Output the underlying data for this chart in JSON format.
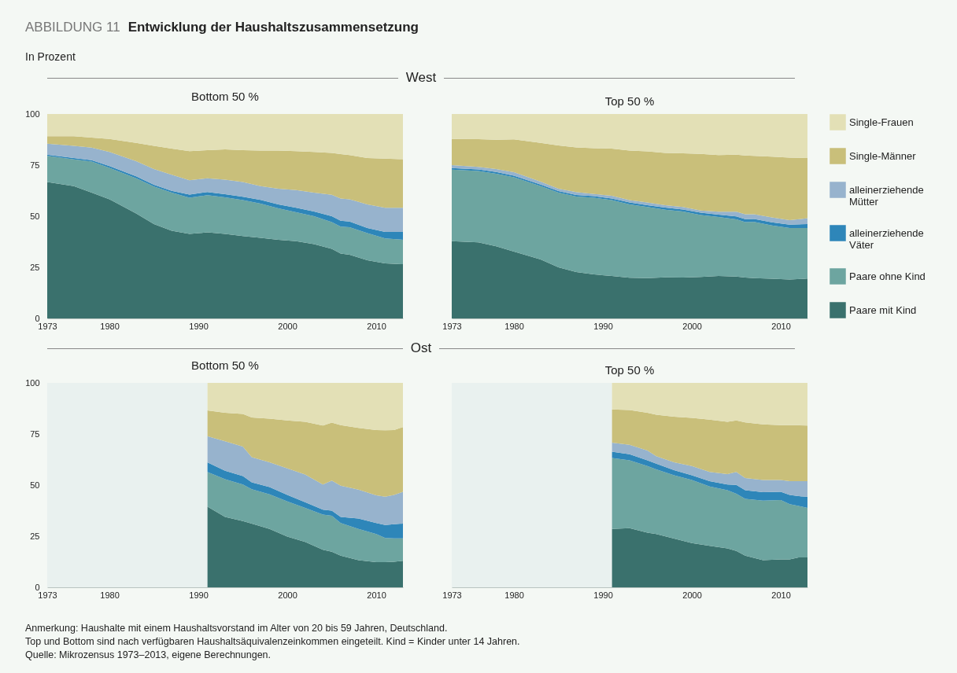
{
  "chart_data": [
    {
      "type": "area",
      "title": "Bottom 50 %",
      "stacked": true,
      "annotations": [
        "ABBILDUNG 11",
        "Entwicklung der Haushaltszusammensetzung",
        "In Prozent",
        "West"
      ],
      "x": [
        1973,
        1976,
        1978,
        1980,
        1983,
        1985,
        1987,
        1989,
        1991,
        1993,
        1995,
        1997,
        1999,
        2001,
        2003,
        2005,
        2006,
        2007,
        2009,
        2011,
        2013
      ],
      "xlim": [
        1973,
        2013
      ],
      "xticks": [
        1973,
        1980,
        1990,
        2000,
        2010
      ],
      "ylim": [
        0,
        100
      ],
      "yticks": [
        0,
        25,
        50,
        75,
        100
      ],
      "series": [
        {
          "color": "#3a716d",
          "values": [
            66.7,
            64.7,
            61.5,
            58.3,
            51.3,
            46.2,
            42.9,
            41.3,
            42.1,
            41.3,
            40.3,
            39.4,
            38.5,
            37.8,
            36.3,
            34.0,
            31.7,
            31.2,
            28.5,
            26.9,
            26.5
          ]
        },
        {
          "color": "#6da5a0",
          "values": [
            12.8,
            13.1,
            15.2,
            15.4,
            17.3,
            18.3,
            18.6,
            17.7,
            18.2,
            17.9,
            17.6,
            16.8,
            15.3,
            14.1,
            13.7,
            13.1,
            13.2,
            13.4,
            13.2,
            12.2,
            12.0
          ]
        },
        {
          "color": "#2e86b9",
          "values": [
            0.6,
            0.7,
            0.7,
            0.8,
            0.9,
            0.9,
            0.9,
            1.6,
            1.5,
            1.6,
            1.6,
            1.8,
            2.0,
            2.2,
            2.3,
            2.9,
            2.9,
            2.8,
            2.5,
            3.2,
            3.8
          ]
        },
        {
          "color": "#97b3cd",
          "values": [
            5.4,
            5.9,
            6.2,
            6.9,
            7.4,
            7.7,
            7.9,
            7.0,
            6.8,
            7.1,
            7.2,
            6.7,
            7.7,
            8.7,
            9.2,
            10.5,
            10.9,
            10.9,
            11.6,
            11.8,
            11.8
          ]
        },
        {
          "color": "#c9bf7a",
          "values": [
            3.6,
            4.7,
            4.9,
            6.4,
            9.0,
            11.3,
            12.8,
            14.2,
            13.7,
            14.8,
            15.6,
            17.4,
            18.6,
            19.0,
            19.9,
            20.5,
            21.7,
            21.6,
            22.7,
            24.1,
            23.8
          ]
        },
        {
          "color": "#e3e0b6",
          "values": [
            10.9,
            10.9,
            11.5,
            12.2,
            14.1,
            15.6,
            16.9,
            18.2,
            17.7,
            17.3,
            17.7,
            17.9,
            17.9,
            18.2,
            18.6,
            19.0,
            19.6,
            20.1,
            21.5,
            21.8,
            22.1
          ]
        }
      ]
    },
    {
      "type": "area",
      "title": "Top 50 %",
      "stacked": true,
      "tick_labels": "x",
      "legend": "right",
      "x": [
        1973,
        1976,
        1978,
        1980,
        1983,
        1985,
        1987,
        1989,
        1991,
        1993,
        1995,
        1997,
        1999,
        2001,
        2003,
        2005,
        2006,
        2007,
        2009,
        2011,
        2013
      ],
      "xlim": [
        1973,
        2013
      ],
      "xticks": [
        1973,
        1980,
        1990,
        2000,
        2010
      ],
      "ylim": [
        0,
        100
      ],
      "yticks": [
        0,
        25,
        50,
        75,
        100
      ],
      "series": [
        {
          "name": "Paare mit Kind",
          "color": "#3a716d",
          "values": [
            37.8,
            37.2,
            35.3,
            32.7,
            28.8,
            25.0,
            22.7,
            21.5,
            20.8,
            19.9,
            19.7,
            20.1,
            20.0,
            20.3,
            20.8,
            20.5,
            20.0,
            19.7,
            19.4,
            19.0,
            19.5
          ]
        },
        {
          "name": "Paare ohne Kind",
          "color": "#6da5a0",
          "values": [
            35.0,
            34.9,
            35.5,
            36.3,
            35.9,
            36.5,
            36.9,
            37.5,
            37.1,
            35.9,
            34.8,
            33.1,
            32.3,
            30.3,
            28.8,
            28.0,
            27.1,
            27.5,
            26.1,
            25.2,
            24.7
          ]
        },
        {
          "name": "alleinerziehende Väter",
          "color": "#2e86b9",
          "values": [
            0.8,
            0.8,
            0.8,
            0.8,
            0.8,
            0.8,
            0.8,
            0.8,
            0.8,
            0.9,
            0.9,
            1.0,
            1.0,
            1.1,
            1.2,
            1.4,
            1.5,
            1.5,
            1.5,
            1.7,
            2.0
          ]
        },
        {
          "name": "alleinerziehende Mütter",
          "color": "#97b3cd",
          "values": [
            1.4,
            1.2,
            1.5,
            1.7,
            1.4,
            1.2,
            1.4,
            1.1,
            1.3,
            1.2,
            1.3,
            1.2,
            1.2,
            1.1,
            1.4,
            2.3,
            2.4,
            2.3,
            2.4,
            2.2,
            2.8
          ]
        },
        {
          "name": "Single-Männer",
          "color": "#c9bf7a",
          "values": [
            12.8,
            13.6,
            14.3,
            16.1,
            19.0,
            21.1,
            21.9,
            22.4,
            23.1,
            24.2,
            25.0,
            25.6,
            26.3,
            27.7,
            27.7,
            27.9,
            28.7,
            28.5,
            29.7,
            30.6,
            29.5
          ]
        },
        {
          "name": "Single-Frauen",
          "color": "#e3e0b6",
          "values": [
            12.2,
            12.3,
            12.6,
            12.4,
            14.1,
            15.4,
            16.3,
            16.7,
            16.9,
            17.9,
            18.3,
            19.0,
            19.2,
            19.5,
            20.1,
            19.9,
            20.3,
            20.5,
            20.9,
            21.3,
            21.5
          ]
        }
      ]
    },
    {
      "type": "area",
      "title": "Bottom 50 %",
      "stacked": true,
      "annotations": [
        "Ost",
        "Anmerkung: Haushalte mit einem Haushaltsvorstand im Alter von 20 bis 59 Jahren, Deutschland.",
        "Top und Bottom sind nach verfügbaren Haushaltsäquivalenzeinkommen eingeteilt. Kind = Kinder unter 14 Jahren.",
        "Quelle: Mikrozensus 1973–2013, eigene Berechnungen."
      ],
      "x": [
        1991,
        1993,
        1995,
        1996,
        1998,
        2000,
        2002,
        2004,
        2005,
        2006,
        2008,
        2010,
        2011,
        2012,
        2013
      ],
      "xlim": [
        1973,
        2013
      ],
      "xticks": [
        1973,
        1980,
        1990,
        2000,
        2010
      ],
      "ylim": [
        0,
        100
      ],
      "yticks": [
        0,
        25,
        50,
        75,
        100
      ],
      "bands": [
        {
          "axis": "x",
          "from": 1973,
          "to": 1991,
          "color": "#e9f1ef"
        }
      ],
      "series": [
        {
          "color": "#3a716d",
          "values": [
            39.5,
            34.4,
            32.4,
            31.2,
            28.6,
            24.8,
            22.2,
            18.4,
            17.4,
            15.5,
            13.3,
            12.3,
            12.3,
            12.5,
            13.0
          ]
        },
        {
          "color": "#6da5a0",
          "values": [
            16.9,
            18.5,
            17.9,
            16.8,
            16.9,
            17.2,
            16.6,
            17.2,
            17.6,
            15.9,
            15.3,
            13.8,
            11.8,
            11.4,
            10.9
          ]
        },
        {
          "color": "#2e86b9",
          "values": [
            4.8,
            4.1,
            4.1,
            3.3,
            3.5,
            3.2,
            2.8,
            2.4,
            2.5,
            3.0,
            5.1,
            5.3,
            6.4,
            7.0,
            7.3
          ]
        },
        {
          "color": "#97b3cd",
          "values": [
            12.7,
            14.4,
            14.4,
            12.4,
            12.2,
            13.0,
            13.6,
            12.3,
            14.7,
            15.3,
            14.1,
            13.6,
            13.8,
            14.3,
            15.5
          ]
        },
        {
          "color": "#c9bf7a",
          "values": [
            12.6,
            14.0,
            16.0,
            19.4,
            21.3,
            23.4,
            25.8,
            28.8,
            28.4,
            29.6,
            30.2,
            31.9,
            32.5,
            31.7,
            31.7
          ]
        },
        {
          "color": "#e3e0b6",
          "values": [
            13.5,
            14.6,
            15.2,
            16.9,
            17.5,
            18.4,
            19.0,
            20.9,
            19.4,
            20.7,
            22.0,
            23.1,
            23.2,
            23.1,
            21.6
          ]
        }
      ]
    },
    {
      "type": "area",
      "title": "Top 50 %",
      "stacked": true,
      "tick_labels": "x",
      "x": [
        1991,
        1993,
        1995,
        1996,
        1998,
        2000,
        2002,
        2004,
        2005,
        2006,
        2008,
        2010,
        2011,
        2012,
        2013
      ],
      "xlim": [
        1973,
        2013
      ],
      "xticks": [
        1973,
        1980,
        1990,
        2000,
        2010
      ],
      "ylim": [
        0,
        100
      ],
      "yticks": [
        0,
        25,
        50,
        75,
        100
      ],
      "bands": [
        {
          "axis": "x",
          "from": 1973,
          "to": 1991,
          "color": "#e9f1ef"
        }
      ],
      "series": [
        {
          "color": "#3a716d",
          "values": [
            28.6,
            28.9,
            26.7,
            26.1,
            23.8,
            21.6,
            20.3,
            19.0,
            17.8,
            15.5,
            13.3,
            13.7,
            13.7,
            14.6,
            14.6
          ]
        },
        {
          "color": "#6da5a0",
          "values": [
            34.7,
            33.2,
            32.6,
            31.6,
            31.0,
            30.9,
            29.0,
            28.5,
            28.0,
            27.8,
            29.1,
            29.0,
            27.0,
            25.2,
            24.2
          ]
        },
        {
          "color": "#2e86b9",
          "values": [
            3.0,
            3.0,
            2.8,
            2.8,
            2.5,
            2.3,
            2.6,
            2.8,
            4.3,
            4.2,
            4.1,
            4.0,
            4.5,
            4.8,
            5.5
          ]
        },
        {
          "color": "#97b3cd",
          "values": [
            4.5,
            4.6,
            4.8,
            3.6,
            3.9,
            4.5,
            4.5,
            5.1,
            6.3,
            6.0,
            6.0,
            5.8,
            6.7,
            7.3,
            7.6
          ]
        },
        {
          "color": "#c9bf7a",
          "values": [
            16.2,
            17.0,
            18.5,
            20.3,
            22.3,
            23.6,
            25.6,
            25.6,
            25.2,
            27.2,
            27.2,
            26.8,
            27.4,
            27.4,
            27.2
          ]
        },
        {
          "color": "#e3e0b6",
          "values": [
            13.0,
            13.3,
            14.6,
            15.6,
            16.5,
            17.1,
            18.0,
            19.0,
            18.4,
            19.3,
            20.3,
            20.7,
            20.7,
            20.7,
            20.9
          ]
        }
      ]
    }
  ]
}
